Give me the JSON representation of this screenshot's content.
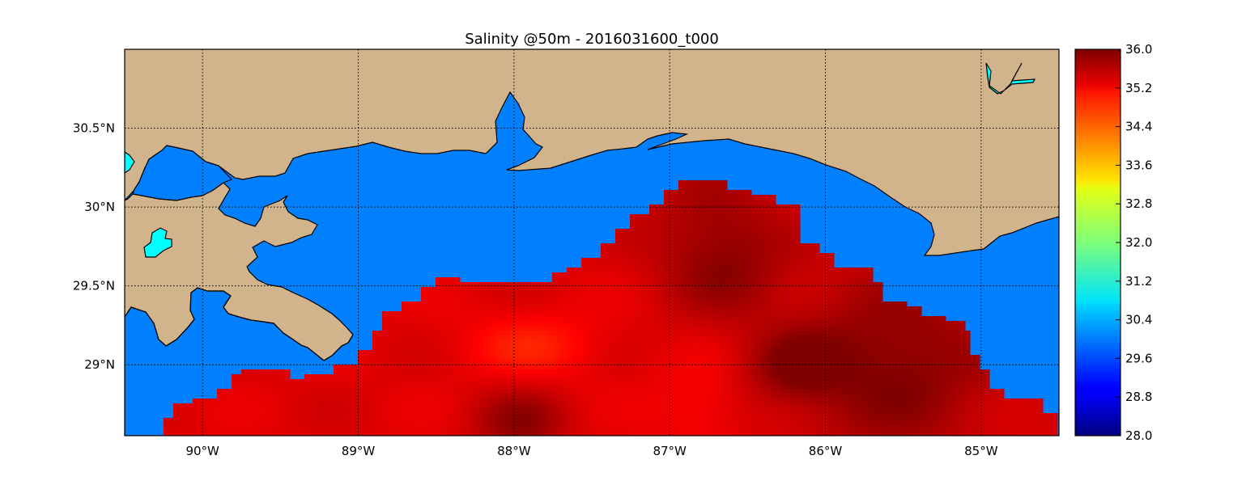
{
  "title": "Salinity @50m - 2016031600_t000",
  "colors": {
    "land": "#d2b48c",
    "water": "#0080ff",
    "lake": "#00ffff",
    "coastline": "#000000"
  },
  "map": {
    "lon_range": [
      -90.5,
      -84.5
    ],
    "lat_range": [
      28.55,
      31.0
    ],
    "lon_ticks": [
      {
        "value": -90,
        "label": "90°W"
      },
      {
        "value": -89,
        "label": "89°W"
      },
      {
        "value": -88,
        "label": "88°W"
      },
      {
        "value": -87,
        "label": "87°W"
      },
      {
        "value": -86,
        "label": "86°W"
      },
      {
        "value": -85,
        "label": "85°W"
      }
    ],
    "lat_ticks": [
      {
        "value": 30.5,
        "label": "30.5°N"
      },
      {
        "value": 30.0,
        "label": "30°N"
      },
      {
        "value": 29.5,
        "label": "29.5°N"
      },
      {
        "value": 29.0,
        "label": "29°N"
      }
    ],
    "grid": "dotted"
  },
  "colorbar": {
    "colormap": "jet",
    "min": 28.0,
    "max": 36.0,
    "ticks": [
      "28.0",
      "28.8",
      "29.6",
      "30.4",
      "31.2",
      "32.0",
      "32.8",
      "33.6",
      "34.4",
      "35.2",
      "36.0"
    ]
  },
  "salinity_field": {
    "variable": "salinity",
    "depth_m": 50,
    "range_shown_psu": [
      34.6,
      36.0
    ],
    "pattern": "Deep-water plume south of ~29.5°N; highest values (≈35.8–36.0) east of 86.3°W and in a tongue reaching ≈30.15°N near 86.9°W; lower values (≈34.8) near 88°W, 29.1°N."
  }
}
